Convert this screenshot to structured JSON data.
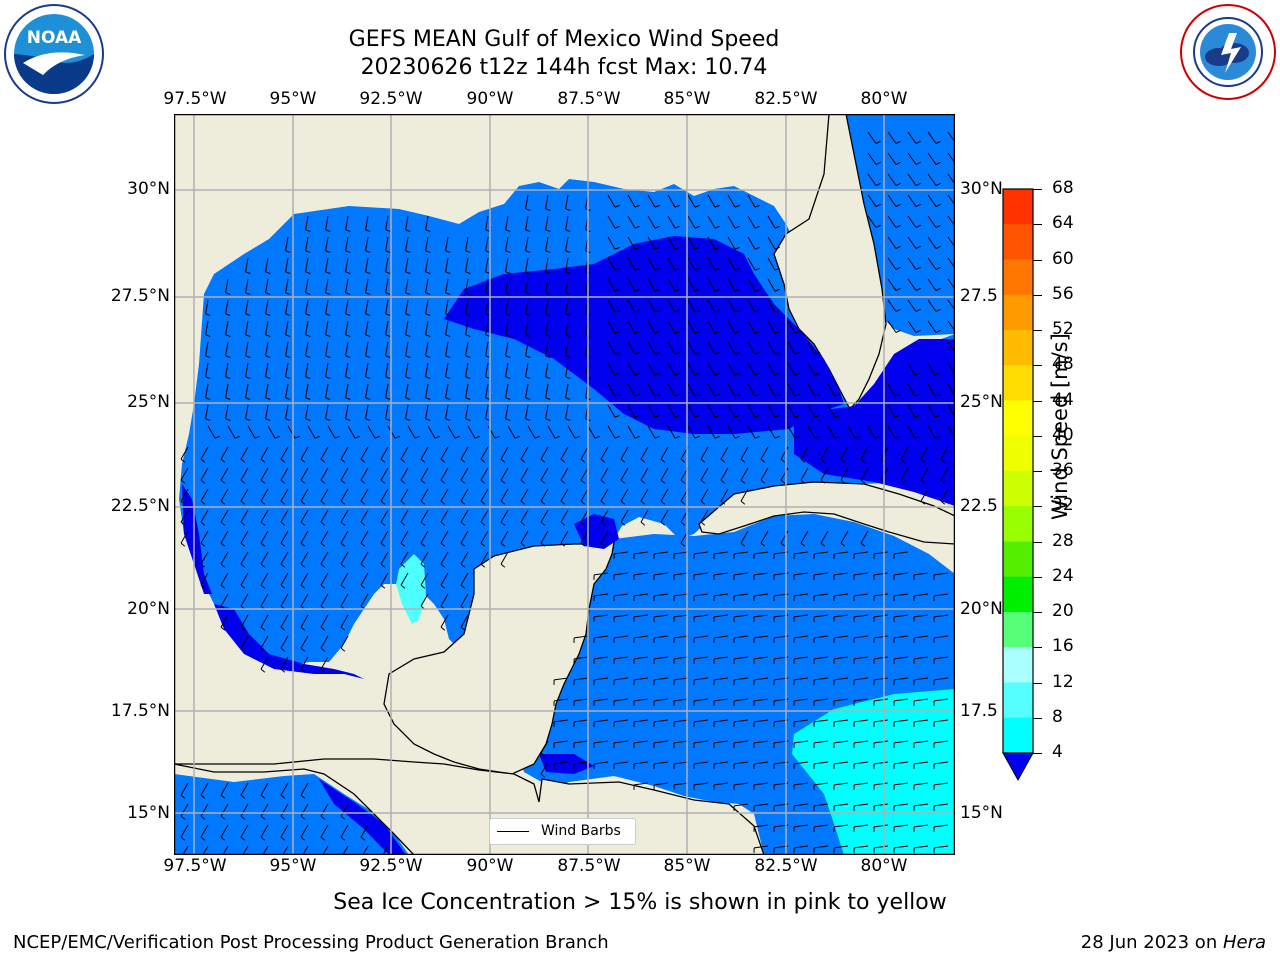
{
  "title": "GEFS MEAN Gulf of Mexico Wind Speed",
  "subtitle": "20230626 t12z 144h fcst   Max: 10.74",
  "caption": "Sea Ice Concentration > 15% is shown in pink to yellow",
  "footer_left": "NCEP/EMC/Verification Post Processing Product Generation Branch",
  "footer_right_date": "28 Jun 2023 on ",
  "footer_right_host": "Hera",
  "logos": {
    "noaa": {
      "text": "NOAA",
      "icon": "noaa-logo-icon"
    },
    "nws": {
      "icon": "nws-logo-icon"
    }
  },
  "map": {
    "lon_labels": [
      "97.5°W",
      "95°W",
      "92.5°W",
      "90°W",
      "87.5°W",
      "85°W",
      "82.5°W",
      "80°W"
    ],
    "lat_labels_left": [
      "30°N",
      "27.5°N",
      "25°N",
      "22.5°N",
      "20°N",
      "17.5°N",
      "15°N"
    ],
    "lat_labels_right": [
      "30°N",
      "27.5",
      "25°N",
      "22.5",
      "20°N",
      "17.5",
      "15°N"
    ],
    "colors": {
      "land": "#eeeddc",
      "speed_lt4": "#0000ee",
      "speed_4_8": "#0078ff",
      "speed_8_12": "#00ffff",
      "speed_12_16": "#4dffff"
    },
    "legend_label": "Wind Barbs"
  },
  "colorbar": {
    "title": "Wind Speed [m/s]",
    "ticks": [
      "68",
      "64",
      "60",
      "56",
      "52",
      "48",
      "44",
      "40",
      "36",
      "32",
      "28",
      "24",
      "20",
      "16",
      "12",
      "8",
      "4"
    ],
    "colors": [
      "#ff0000",
      "#ff3300",
      "#ff5500",
      "#ff7700",
      "#ff9900",
      "#ffbb00",
      "#ffdd00",
      "#ffff00",
      "#eeff00",
      "#ccff00",
      "#99ff00",
      "#55ee00",
      "#00ee00",
      "#55ff77",
      "#aaffff",
      "#55ffff",
      "#00ffff",
      "#0078ff"
    ],
    "extend_color": "#0000ee"
  }
}
